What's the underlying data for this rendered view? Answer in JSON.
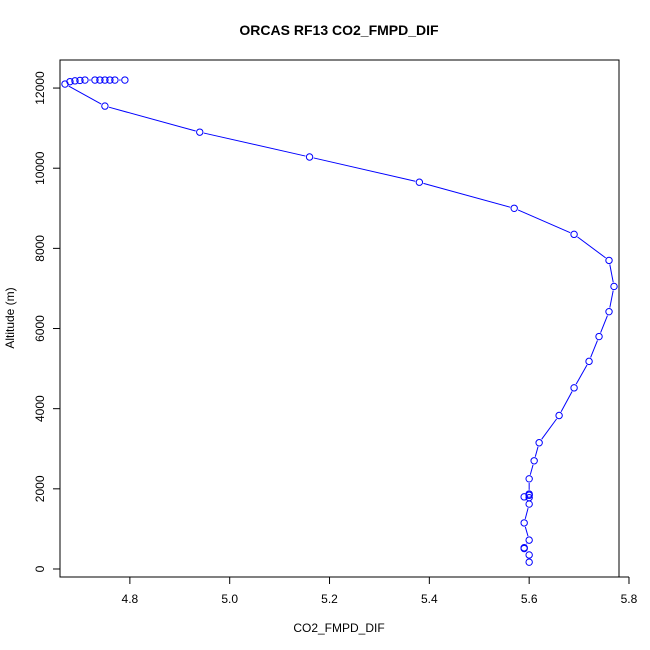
{
  "chart_data": {
    "type": "line",
    "title": "ORCAS RF13 CO2_FMPD_DIF",
    "xlabel": "CO2_FMPD_DIF",
    "ylabel": "Altitude (m)",
    "xlim": [
      4.66,
      5.78
    ],
    "ylim": [
      -200,
      12700
    ],
    "xticks": [
      4.8,
      5.0,
      5.2,
      5.4,
      5.6,
      5.8
    ],
    "xtick_labels": [
      "4.8",
      "5.0",
      "5.2",
      "5.4",
      "5.6",
      "5.8"
    ],
    "yticks": [
      0,
      2000,
      4000,
      6000,
      8000,
      10000,
      12000
    ],
    "ytick_labels": [
      "0",
      "2000",
      "4000",
      "6000",
      "8000",
      "10000",
      "12000"
    ],
    "grid": false,
    "line_color": "#0000ff",
    "marker": "open-circle",
    "series": [
      {
        "points": [
          {
            "x": 4.79,
            "y": 12200
          },
          {
            "x": 4.77,
            "y": 12200
          },
          {
            "x": 4.76,
            "y": 12200
          },
          {
            "x": 4.75,
            "y": 12200
          },
          {
            "x": 4.74,
            "y": 12200
          },
          {
            "x": 4.73,
            "y": 12200
          },
          {
            "x": 4.71,
            "y": 12200
          },
          {
            "x": 4.7,
            "y": 12190
          },
          {
            "x": 4.69,
            "y": 12180
          },
          {
            "x": 4.68,
            "y": 12160
          },
          {
            "x": 4.67,
            "y": 12100
          },
          {
            "x": 4.75,
            "y": 11550
          },
          {
            "x": 4.94,
            "y": 10900
          },
          {
            "x": 5.16,
            "y": 10280
          },
          {
            "x": 5.38,
            "y": 9650
          },
          {
            "x": 5.57,
            "y": 9000
          },
          {
            "x": 5.69,
            "y": 8350
          },
          {
            "x": 5.76,
            "y": 7700
          },
          {
            "x": 5.77,
            "y": 7050
          },
          {
            "x": 5.76,
            "y": 6420
          },
          {
            "x": 5.74,
            "y": 5800
          },
          {
            "x": 5.72,
            "y": 5180
          },
          {
            "x": 5.69,
            "y": 4520
          },
          {
            "x": 5.66,
            "y": 3830
          },
          {
            "x": 5.62,
            "y": 3150
          },
          {
            "x": 5.61,
            "y": 2700
          },
          {
            "x": 5.6,
            "y": 2250
          },
          {
            "x": 5.6,
            "y": 1870
          },
          {
            "x": 5.6,
            "y": 1840
          },
          {
            "x": 5.59,
            "y": 1800
          },
          {
            "x": 5.6,
            "y": 1780
          },
          {
            "x": 5.6,
            "y": 1620
          },
          {
            "x": 5.59,
            "y": 1150
          },
          {
            "x": 5.6,
            "y": 720
          },
          {
            "x": 5.59,
            "y": 530
          },
          {
            "x": 5.59,
            "y": 510
          },
          {
            "x": 5.6,
            "y": 350
          },
          {
            "x": 5.6,
            "y": 170
          }
        ]
      }
    ]
  }
}
